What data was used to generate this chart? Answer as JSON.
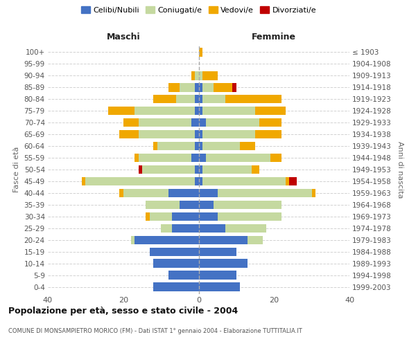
{
  "age_groups": [
    "100+",
    "95-99",
    "90-94",
    "85-89",
    "80-84",
    "75-79",
    "70-74",
    "65-69",
    "60-64",
    "55-59",
    "50-54",
    "45-49",
    "40-44",
    "35-39",
    "30-34",
    "25-29",
    "20-24",
    "15-19",
    "10-14",
    "5-9",
    "0-4"
  ],
  "birth_years": [
    "≤ 1903",
    "1904-1908",
    "1909-1913",
    "1914-1918",
    "1919-1923",
    "1924-1928",
    "1929-1933",
    "1934-1938",
    "1939-1943",
    "1944-1948",
    "1949-1953",
    "1954-1958",
    "1959-1963",
    "1964-1968",
    "1969-1973",
    "1974-1978",
    "1979-1983",
    "1984-1988",
    "1989-1993",
    "1994-1998",
    "1999-2003"
  ],
  "colors": {
    "celibi": "#4472c4",
    "coniugati": "#c5d9a0",
    "vedovi": "#f0a800",
    "divorziati": "#c00000"
  },
  "maschi": {
    "celibi": [
      0,
      0,
      0,
      1,
      1,
      1,
      2,
      1,
      1,
      2,
      1,
      1,
      8,
      5,
      7,
      7,
      17,
      13,
      12,
      8,
      12
    ],
    "coniugati": [
      0,
      0,
      1,
      4,
      5,
      16,
      14,
      15,
      10,
      14,
      14,
      29,
      12,
      9,
      6,
      3,
      1,
      0,
      0,
      0,
      0
    ],
    "vedovi": [
      0,
      0,
      1,
      3,
      6,
      7,
      4,
      5,
      1,
      1,
      0,
      1,
      1,
      0,
      1,
      0,
      0,
      0,
      0,
      0,
      0
    ],
    "divorziati": [
      0,
      0,
      0,
      0,
      0,
      0,
      0,
      0,
      0,
      0,
      1,
      0,
      0,
      0,
      0,
      0,
      0,
      0,
      0,
      0,
      0
    ]
  },
  "femmine": {
    "celibi": [
      0,
      0,
      0,
      1,
      1,
      1,
      2,
      1,
      1,
      2,
      1,
      1,
      5,
      4,
      5,
      7,
      13,
      10,
      13,
      10,
      11
    ],
    "coniugati": [
      0,
      0,
      1,
      3,
      6,
      14,
      14,
      14,
      10,
      17,
      13,
      22,
      25,
      18,
      17,
      11,
      4,
      0,
      0,
      0,
      0
    ],
    "vedovi": [
      1,
      0,
      4,
      5,
      15,
      8,
      6,
      7,
      4,
      3,
      2,
      1,
      1,
      0,
      0,
      0,
      0,
      0,
      0,
      0,
      0
    ],
    "divorziati": [
      0,
      0,
      0,
      1,
      0,
      0,
      0,
      0,
      0,
      0,
      0,
      2,
      0,
      0,
      0,
      0,
      0,
      0,
      0,
      0,
      0
    ]
  },
  "title": "Popolazione per età, sesso e stato civile - 2004",
  "subtitle": "COMUNE DI MONSAMPIETRO MORICO (FM) - Dati ISTAT 1° gennaio 2004 - Elaborazione TUTTITALIA.IT",
  "xlabel_left": "Maschi",
  "xlabel_right": "Femmine",
  "ylabel_left": "Fasce di età",
  "ylabel_right": "Anni di nascita",
  "xlim": 40,
  "legend_labels": [
    "Celibi/Nubili",
    "Coniugati/e",
    "Vedovi/e",
    "Divorziati/e"
  ],
  "background_color": "#ffffff",
  "grid_color": "#cccccc"
}
